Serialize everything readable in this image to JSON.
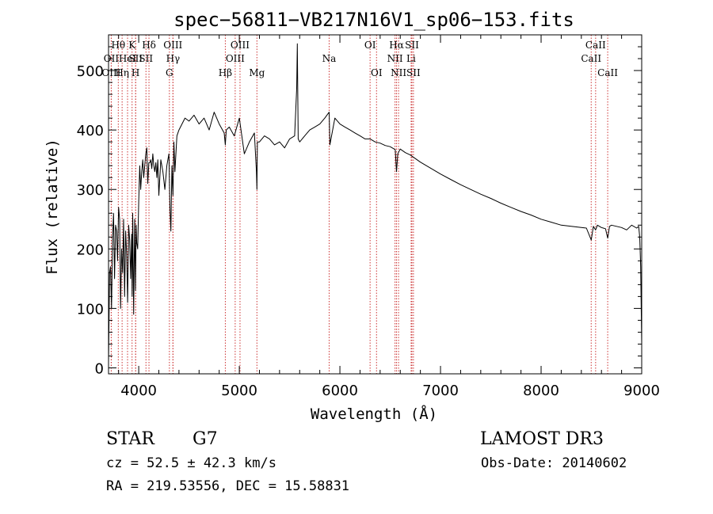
{
  "chart_data": {
    "type": "line",
    "title": "spec−56811−VB217N16V1_sp06−153.fits",
    "xlabel": "Wavelength (Å)",
    "ylabel": "Flux (relative)",
    "xlim": [
      3700,
      9000
    ],
    "ylim": [
      -10,
      560
    ],
    "x_ticks": [
      4000,
      5000,
      6000,
      7000,
      8000,
      9000
    ],
    "y_ticks": [
      0,
      100,
      200,
      300,
      400,
      500
    ],
    "x_minor_step": 200,
    "y_minor_step": 20,
    "grid": false,
    "series": [
      {
        "name": "flux",
        "color": "#000000",
        "x": [
          3700,
          3710,
          3720,
          3730,
          3740,
          3750,
          3760,
          3770,
          3780,
          3790,
          3800,
          3810,
          3820,
          3830,
          3840,
          3850,
          3860,
          3870,
          3880,
          3890,
          3900,
          3910,
          3920,
          3930,
          3935,
          3940,
          3950,
          3960,
          3968,
          3975,
          3980,
          3990,
          4000,
          4010,
          4020,
          4030,
          4040,
          4050,
          4060,
          4070,
          4080,
          4090,
          4101,
          4110,
          4120,
          4130,
          4140,
          4150,
          4160,
          4170,
          4180,
          4190,
          4200,
          4220,
          4240,
          4260,
          4280,
          4300,
          4310,
          4320,
          4330,
          4340,
          4350,
          4360,
          4380,
          4400,
          4430,
          4460,
          4500,
          4550,
          4600,
          4650,
          4700,
          4750,
          4800,
          4850,
          4861,
          4870,
          4900,
          4950,
          5000,
          5050,
          5100,
          5150,
          5170,
          5175,
          5180,
          5200,
          5250,
          5300,
          5350,
          5400,
          5450,
          5500,
          5550,
          5570,
          5577,
          5585,
          5600,
          5650,
          5700,
          5750,
          5800,
          5850,
          5893,
          5900,
          5950,
          6000,
          6050,
          6100,
          6150,
          6200,
          6250,
          6300,
          6350,
          6400,
          6450,
          6500,
          6550,
          6563,
          6575,
          6600,
          6650,
          6700,
          6800,
          6900,
          7000,
          7100,
          7200,
          7300,
          7400,
          7500,
          7600,
          7700,
          7800,
          7900,
          8000,
          8100,
          8200,
          8300,
          8400,
          8450,
          8498,
          8520,
          8542,
          8560,
          8600,
          8640,
          8662,
          8680,
          8700,
          8750,
          8800,
          8850,
          8900,
          8950,
          8970,
          8980,
          8990,
          9000
        ],
        "values": [
          10,
          160,
          170,
          100,
          220,
          260,
          150,
          240,
          230,
          180,
          270,
          250,
          100,
          200,
          160,
          250,
          120,
          230,
          190,
          110,
          240,
          215,
          150,
          225,
          120,
          260,
          90,
          250,
          130,
          240,
          210,
          200,
          280,
          340,
          300,
          330,
          350,
          320,
          340,
          360,
          370,
          310,
          345,
          345,
          350,
          335,
          360,
          340,
          330,
          345,
          320,
          350,
          290,
          350,
          330,
          300,
          340,
          360,
          270,
          230,
          340,
          290,
          380,
          330,
          390,
          400,
          410,
          420,
          415,
          425,
          410,
          420,
          400,
          430,
          410,
          395,
          375,
          400,
          405,
          390,
          420,
          360,
          380,
          395,
          330,
          300,
          380,
          380,
          390,
          385,
          375,
          380,
          370,
          385,
          390,
          470,
          545,
          385,
          380,
          390,
          400,
          405,
          410,
          420,
          430,
          375,
          420,
          410,
          405,
          400,
          395,
          390,
          385,
          385,
          380,
          378,
          374,
          372,
          367,
          330,
          360,
          368,
          362,
          358,
          346,
          336,
          326,
          317,
          308,
          300,
          292,
          285,
          277,
          270,
          263,
          257,
          250,
          245,
          240,
          238,
          236,
          235,
          215,
          238,
          232,
          240,
          236,
          234,
          218,
          238,
          240,
          238,
          236,
          232,
          240,
          235,
          238,
          220,
          170,
          40
        ]
      }
    ],
    "line_markers": [
      {
        "label": "Hθ",
        "x": 3797,
        "row": 1
      },
      {
        "label": "OII",
        "x": 3727,
        "row": 2
      },
      {
        "label": "OIII",
        "x": 3727,
        "row": 3
      },
      {
        "label": "Hη",
        "x": 3835,
        "row": 3
      },
      {
        "label": "HeI",
        "x": 3889,
        "row": 2
      },
      {
        "label": "K",
        "x": 3934,
        "row": 1
      },
      {
        "label": "SII",
        "x": 3970,
        "row": 2
      },
      {
        "label": "H",
        "x": 3969,
        "row": 3
      },
      {
        "label": "Hδ",
        "x": 4102,
        "row": 1
      },
      {
        "label": "SII",
        "x": 4072,
        "row": 2
      },
      {
        "label": "OIII",
        "x": 4340,
        "row": 1
      },
      {
        "label": "Hγ",
        "x": 4341,
        "row": 2
      },
      {
        "label": "G",
        "x": 4305,
        "row": 3
      },
      {
        "label": "OIII",
        "x": 5007,
        "row": 1
      },
      {
        "label": "OIII",
        "x": 4959,
        "row": 2
      },
      {
        "label": "Hβ",
        "x": 4861,
        "row": 3
      },
      {
        "label": "Mg",
        "x": 5175,
        "row": 3
      },
      {
        "label": "Na",
        "x": 5893,
        "row": 2
      },
      {
        "label": "OI",
        "x": 6300,
        "row": 1
      },
      {
        "label": "OI",
        "x": 6364,
        "row": 3
      },
      {
        "label": "Hα",
        "x": 6563,
        "row": 1
      },
      {
        "label": "SII",
        "x": 6716,
        "row": 1
      },
      {
        "label": "NII",
        "x": 6548,
        "row": 2
      },
      {
        "label": "Li",
        "x": 6708,
        "row": 2
      },
      {
        "label": "NII",
        "x": 6583,
        "row": 3
      },
      {
        "label": "SII",
        "x": 6731,
        "row": 3
      },
      {
        "label": "CaII",
        "x": 8542,
        "row": 1
      },
      {
        "label": "CaII",
        "x": 8498,
        "row": 2
      },
      {
        "label": "CaII",
        "x": 8662,
        "row": 3
      }
    ]
  },
  "info": {
    "object_type": "STAR",
    "subclass": "G7",
    "redshift": "cz = 52.5 ± 42.3 km/s",
    "coords": "RA = 219.53556, DEC =  15.58831",
    "survey": "LAMOST DR3",
    "obs_date": "Obs-Date: 20140602"
  },
  "colors": {
    "marker_line": "#cc3333",
    "spectrum": "#000000"
  }
}
